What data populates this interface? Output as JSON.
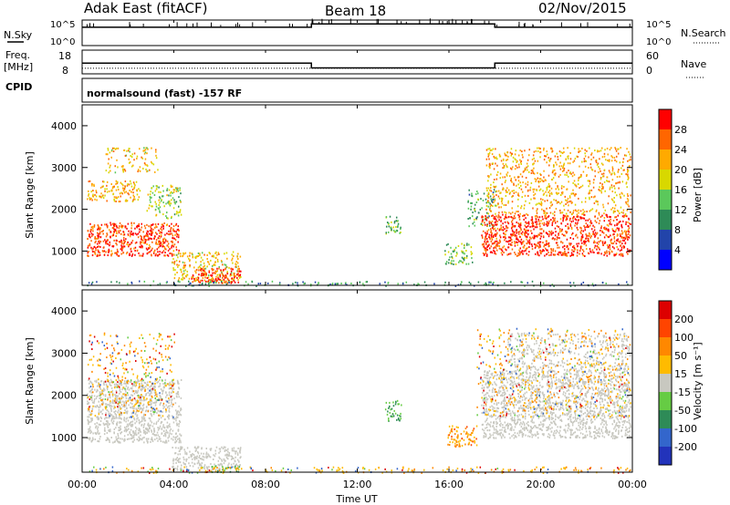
{
  "header": {
    "radar": "Adak East (fitACF)",
    "beam": "Beam 18",
    "date": "02/Nov/2015"
  },
  "nsky_panel": {
    "left_label": "N.Sky",
    "right_label": "N.Search",
    "left_ticks": [
      "10^5",
      "10^0"
    ],
    "right_ticks": [
      "10^5",
      "10^0"
    ]
  },
  "freq_panel": {
    "left_label_top": "Freq.",
    "left_label_bottom": "[MHz]",
    "left_ticks": [
      "18",
      "8"
    ],
    "right_label": "Nave",
    "right_ticks": [
      "60",
      "0"
    ],
    "cpid_label": "CPID",
    "cpid_text": "normalsound (fast) -157 RF"
  },
  "power_panel": {
    "ylabel": "Slant Range [km]",
    "yticks": [
      "4000",
      "3000",
      "2000",
      "1000"
    ],
    "colorbar_label": "Power [dB]",
    "colorbar_ticks": [
      "28",
      "24",
      "20",
      "16",
      "12",
      "8",
      "4"
    ],
    "colors": [
      "#0000ff",
      "#2244aa",
      "#2e8b57",
      "#5bc85b",
      "#d8d800",
      "#ffaa00",
      "#ff6600",
      "#ff0000"
    ]
  },
  "velocity_panel": {
    "ylabel": "Slant Range [km]",
    "yticks": [
      "4000",
      "3000",
      "2000",
      "1000"
    ],
    "colorbar_label": "Velocity [m s⁻¹]",
    "colorbar_ticks": [
      "200",
      "100",
      "50",
      "15",
      "-15",
      "-50",
      "-100",
      "-200"
    ],
    "colors": [
      "#2233bb",
      "#3366cc",
      "#2e8b57",
      "#66cc44",
      "#c8c8c0",
      "#ffbb00",
      "#ff8800",
      "#ff4400",
      "#dd0000"
    ],
    "ground_scatter_color": "#c8c8c0"
  },
  "x_axis": {
    "ticks": [
      "00:00",
      "04:00",
      "08:00",
      "12:00",
      "16:00",
      "20:00",
      "00:00"
    ],
    "label": "Time UT"
  },
  "chart_data": {
    "type": "heatmap",
    "x_range_hours": [
      0,
      24
    ],
    "y_range_km": [
      180,
      4500
    ],
    "nsky": {
      "segments": [
        {
          "t_start": 0,
          "t_end": 10,
          "level": 0.72
        },
        {
          "t_start": 10,
          "t_end": 18,
          "level": 0.85
        },
        {
          "t_start": 18,
          "t_end": 24,
          "level": 0.72
        }
      ]
    },
    "freq_mhz": [
      {
        "t_start": 0,
        "t_end": 10,
        "value": 12.5
      },
      {
        "t_start": 10,
        "t_end": 18,
        "value": 10.5
      },
      {
        "t_start": 18,
        "t_end": 24,
        "value": 12.5
      }
    ],
    "nave": [
      {
        "t_start": 0,
        "t_end": 10,
        "value": 14
      },
      {
        "t_start": 10,
        "t_end": 18,
        "value": 14
      },
      {
        "t_start": 18,
        "t_end": 24,
        "value": 14
      }
    ],
    "power_regions": [
      {
        "t0": 0.2,
        "t1": 4.2,
        "r0": 900,
        "r1": 1700,
        "db": 26,
        "density": 0.85
      },
      {
        "t0": 0.2,
        "t1": 2.5,
        "r0": 2200,
        "r1": 2700,
        "db": 20,
        "density": 0.6
      },
      {
        "t0": 1.0,
        "t1": 3.3,
        "r0": 2900,
        "r1": 3500,
        "db": 18,
        "density": 0.35
      },
      {
        "t0": 2.8,
        "t1": 4.3,
        "r0": 1800,
        "r1": 2600,
        "db": 14,
        "density": 0.5
      },
      {
        "t0": 3.9,
        "t1": 6.9,
        "r0": 250,
        "r1": 1000,
        "db": 18,
        "density": 0.55
      },
      {
        "t0": 4.7,
        "t1": 6.9,
        "r0": 250,
        "r1": 600,
        "db": 27,
        "density": 0.7
      },
      {
        "t0": 13.2,
        "t1": 13.9,
        "r0": 1400,
        "r1": 1900,
        "db": 12,
        "density": 0.55
      },
      {
        "t0": 15.8,
        "t1": 17.0,
        "r0": 700,
        "r1": 1200,
        "db": 12,
        "density": 0.55
      },
      {
        "t0": 16.8,
        "t1": 18.0,
        "r0": 1600,
        "r1": 2500,
        "db": 10,
        "density": 0.4
      },
      {
        "t0": 17.4,
        "t1": 23.9,
        "r0": 900,
        "r1": 1900,
        "db": 26,
        "density": 0.8
      },
      {
        "t0": 17.6,
        "t1": 23.9,
        "r0": 1900,
        "r1": 3500,
        "db": 20,
        "density": 0.4
      },
      {
        "t0": 0.2,
        "t1": 23.9,
        "r0": 180,
        "r1": 300,
        "db": 8,
        "density": 0.3
      }
    ],
    "velocity_regions": [
      {
        "t0": 0.2,
        "t1": 4.3,
        "r0": 900,
        "r1": 2400,
        "class": "ground",
        "density": 0.85
      },
      {
        "t0": 3.9,
        "t1": 6.9,
        "r0": 250,
        "r1": 800,
        "class": "ground",
        "density": 0.75
      },
      {
        "t0": 5.6,
        "t1": 6.9,
        "r0": 200,
        "r1": 350,
        "class": "green",
        "density": 0.6
      },
      {
        "t0": 17.4,
        "t1": 23.9,
        "r0": 1000,
        "r1": 2600,
        "class": "ground",
        "density": 0.8
      },
      {
        "t0": 18.5,
        "t1": 23.9,
        "r0": 2600,
        "r1": 3500,
        "class": "ground",
        "density": 0.45
      },
      {
        "t0": 13.2,
        "t1": 13.9,
        "r0": 1400,
        "r1": 1900,
        "class": "green",
        "density": 0.6
      },
      {
        "t0": 15.9,
        "t1": 17.2,
        "r0": 800,
        "r1": 1300,
        "class": "orange",
        "density": 0.65
      },
      {
        "t0": 0.2,
        "t1": 4.0,
        "r0": 1500,
        "r1": 3500,
        "class": "sparse-orange",
        "density": 0.25
      },
      {
        "t0": 0.2,
        "t1": 23.9,
        "r0": 180,
        "r1": 320,
        "class": "sparse-orange",
        "density": 0.35
      },
      {
        "t0": 17.2,
        "t1": 23.9,
        "r0": 1500,
        "r1": 3600,
        "class": "sparse-orange",
        "density": 0.2
      }
    ]
  }
}
